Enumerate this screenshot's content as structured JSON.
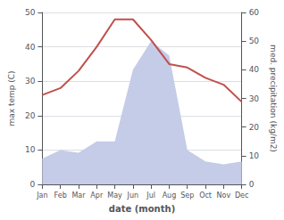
{
  "chart_data": {
    "type": "line",
    "xlabel": "date (month)",
    "ylabel": "max temp (C)",
    "y2label": "med. precipitation (kg/m2)",
    "categories": [
      "Jan",
      "Feb",
      "Mar",
      "Apr",
      "May",
      "Jun",
      "Jul",
      "Aug",
      "Sep",
      "Oct",
      "Nov",
      "Dec"
    ],
    "series": [
      {
        "type": "area",
        "axis": "y2",
        "color": "#c5cce8",
        "values": [
          9,
          12,
          11,
          15,
          15,
          40,
          50,
          45,
          12,
          8,
          7,
          8
        ]
      },
      {
        "type": "line",
        "axis": "y",
        "color": "#c0504d",
        "values": [
          26,
          28,
          33,
          40,
          48,
          48,
          42,
          35,
          34,
          31,
          29,
          24
        ]
      }
    ],
    "ylim": [
      0,
      50
    ],
    "yticks": [
      0,
      10,
      20,
      30,
      40,
      50
    ],
    "y2lim": [
      0,
      60
    ],
    "y2ticks": [
      0,
      10,
      20,
      30,
      40,
      50,
      60
    ],
    "grid": true
  }
}
